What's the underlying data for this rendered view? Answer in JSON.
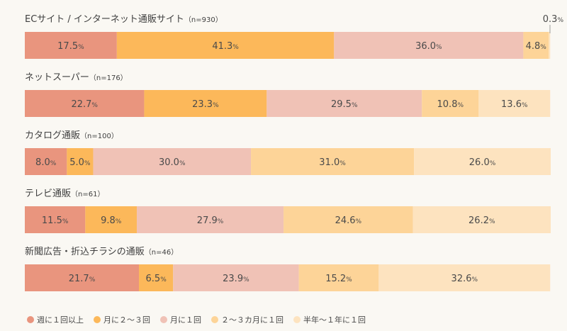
{
  "chart_data": {
    "type": "stacked-bar-horizontal",
    "x_range": [
      0,
      100
    ],
    "legend_position": "bottom",
    "categories_series": [
      "週に１回以上",
      "月に２～３回",
      "月に１回",
      "２～３カ月に１回",
      "半年～１年に１回"
    ],
    "colors": [
      "#e9957e",
      "#fcb85a",
      "#f0c2b6",
      "#fdd498",
      "#fde3bf"
    ],
    "rows": [
      {
        "title": "ECサイト / インターネット通販サイト",
        "n": "（n=930）",
        "values": [
          17.5,
          41.3,
          36.0,
          4.8,
          0.3
        ],
        "labels": [
          "17.5%",
          "41.3%",
          "36.0%",
          "4.8%",
          "0.3%"
        ]
      },
      {
        "title": "ネットスーパー",
        "n": "（n=176）",
        "values": [
          22.7,
          23.3,
          29.5,
          10.8,
          13.6
        ],
        "labels": [
          "22.7%",
          "23.3%",
          "29.5%",
          "10.8%",
          "13.6%"
        ]
      },
      {
        "title": "カタログ通販",
        "n": "（n=100）",
        "values": [
          8.0,
          5.0,
          30.0,
          31.0,
          26.0
        ],
        "labels": [
          "8.0%",
          "5.0%",
          "30.0%",
          "31.0%",
          "26.0%"
        ]
      },
      {
        "title": "テレビ通販",
        "n": "（n=61）",
        "values": [
          11.5,
          9.8,
          27.9,
          24.6,
          26.2
        ],
        "labels": [
          "11.5%",
          "9.8%",
          "27.9%",
          "24.6%",
          "26.2%"
        ]
      },
      {
        "title": "新聞広告・折込チラシの通販",
        "n": "（n=46）",
        "values": [
          21.7,
          6.5,
          23.9,
          15.2,
          32.6
        ],
        "labels": [
          "21.7%",
          "6.5%",
          "23.9%",
          "15.2%",
          "32.6%"
        ]
      }
    ]
  }
}
